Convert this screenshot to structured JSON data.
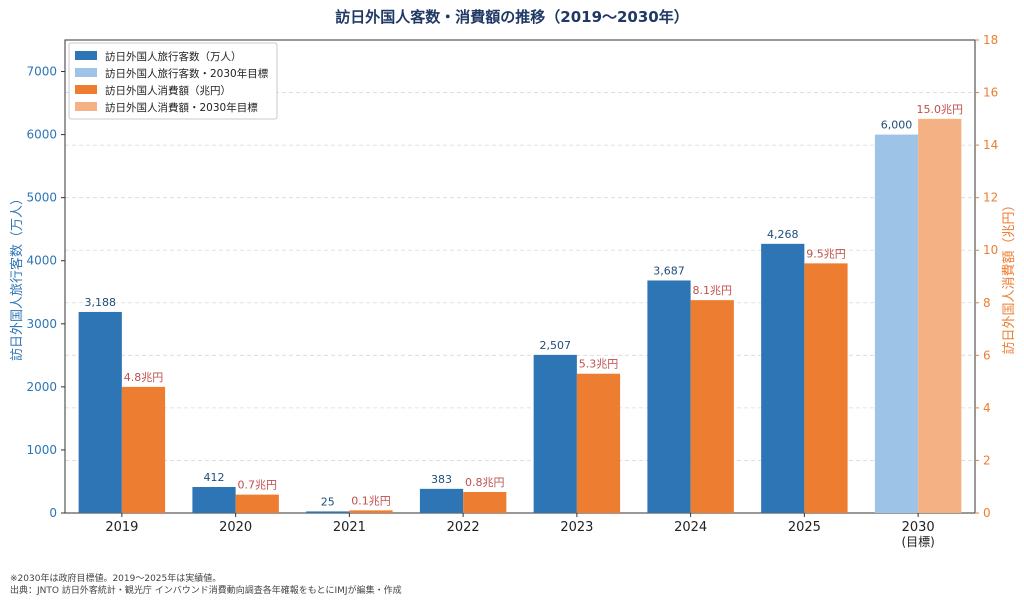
{
  "chart_data": {
    "type": "bar",
    "title": "訪日外国人客数・消費額の推移（2019〜2030年）",
    "categories": [
      "2019",
      "2020",
      "2021",
      "2022",
      "2023",
      "2024",
      "2025",
      "2030"
    ],
    "category_sublabels": [
      "",
      "",
      "",
      "",
      "",
      "",
      "",
      "(目標)"
    ],
    "y_left": {
      "label": "訪日外国人旅行客数（万人）",
      "range": [
        0,
        7500
      ],
      "ticks": [
        0,
        1000,
        2000,
        3000,
        4000,
        5000,
        6000,
        7000
      ]
    },
    "y_right": {
      "label": "訪日外国人消費額（兆円）",
      "range": [
        0,
        18
      ],
      "ticks": [
        0,
        2,
        4,
        6,
        8,
        10,
        12,
        14,
        16,
        18
      ]
    },
    "grid": true,
    "legend_position": "top-left",
    "series": [
      {
        "name": "訪日外国人旅行客数（万人）",
        "axis": "left",
        "color": "#2E75B6",
        "values": [
          3188,
          412,
          25,
          383,
          2507,
          3687,
          4268,
          null
        ],
        "labels": [
          "3,188",
          "412",
          "25",
          "383",
          "2,507",
          "3,687",
          "4,268",
          ""
        ]
      },
      {
        "name": "訪日外国人旅行客数・2030年目標",
        "axis": "left",
        "color": "#9DC3E6",
        "values": [
          null,
          null,
          null,
          null,
          null,
          null,
          null,
          6000
        ],
        "labels": [
          "",
          "",
          "",
          "",
          "",
          "",
          "",
          "6,000"
        ]
      },
      {
        "name": "訪日外国人消費額（兆円）",
        "axis": "right",
        "color": "#ED7D31",
        "values": [
          4.8,
          0.7,
          0.1,
          0.8,
          5.3,
          8.1,
          9.5,
          null
        ],
        "labels": [
          "4.8兆円",
          "0.7兆円",
          "0.1兆円",
          "0.8兆円",
          "5.3兆円",
          "8.1兆円",
          "9.5兆円",
          ""
        ]
      },
      {
        "name": "訪日外国人消費額・2030年目標",
        "axis": "right",
        "color": "#F4B183",
        "values": [
          null,
          null,
          null,
          null,
          null,
          null,
          null,
          15.0
        ],
        "labels": [
          "",
          "",
          "",
          "",
          "",
          "",
          "",
          "15.0兆円"
        ]
      }
    ],
    "colors": {
      "left_axis": "#2E75B6",
      "right_axis": "#ED7D31",
      "right_label_text": "#C0504D"
    }
  },
  "footnotes": {
    "line1": "※2030年は政府目標値。2019〜2025年は実績値。",
    "line2": "出典：JNTO 訪日外客統計・観光庁 インバウンド消費動向調査各年確報をもとにIMJが編集・作成"
  }
}
